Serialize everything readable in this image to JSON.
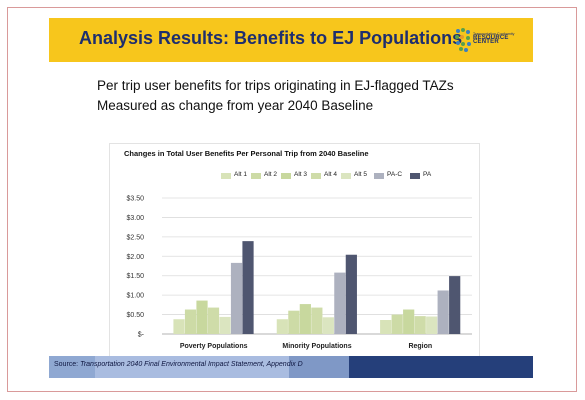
{
  "slide": {
    "title": "Analysis Results:  Benefits to EJ Populations",
    "subtitle_lines": [
      "Per trip user benefits for trips originating in EJ-flagged TAZs",
      "Measured as change from year 2040 Baseline"
    ],
    "logo": {
      "small_line": "Transportation Conformity",
      "big_line": "RESOURCE CENTER"
    },
    "source": {
      "label": "Source:",
      "text": "Transportation 2040 Final Environmental Impact Statement, Appendix D"
    }
  },
  "chart_data": {
    "type": "bar",
    "title": "Changes in Total User Benefits Per Personal Trip from 2040 Baseline",
    "xlabel": "",
    "ylabel": "",
    "categories": [
      "Poverty Populations",
      "Minority Populations",
      "Region"
    ],
    "ylim": [
      0,
      3.5
    ],
    "yticks": [
      0,
      0.5,
      1.0,
      1.5,
      2.0,
      2.5,
      3.0,
      3.5
    ],
    "ytick_labels": [
      "$-",
      "$0.50",
      "$1.00",
      "$1.50",
      "$2.00",
      "$2.50",
      "$3.00",
      "$3.50"
    ],
    "grid": true,
    "legend_position": "top",
    "series": [
      {
        "name": "Alt 1",
        "color": "#d8e3b8",
        "values": [
          0.38,
          0.38,
          0.36
        ]
      },
      {
        "name": "Alt 2",
        "color": "#cddba6",
        "values": [
          0.63,
          0.6,
          0.5
        ]
      },
      {
        "name": "Alt 3",
        "color": "#c8d89e",
        "values": [
          0.86,
          0.77,
          0.63
        ]
      },
      {
        "name": "Alt 4",
        "color": "#cfdca9",
        "values": [
          0.68,
          0.68,
          0.46
        ]
      },
      {
        "name": "Alt 5",
        "color": "#dbe5c0",
        "values": [
          0.44,
          0.43,
          0.45
        ]
      },
      {
        "name": "PA-C",
        "color": "#adb1bf",
        "values": [
          1.83,
          1.58,
          1.12
        ]
      },
      {
        "name": "PA",
        "color": "#4f5670",
        "values": [
          2.39,
          2.04,
          1.49
        ]
      }
    ]
  }
}
